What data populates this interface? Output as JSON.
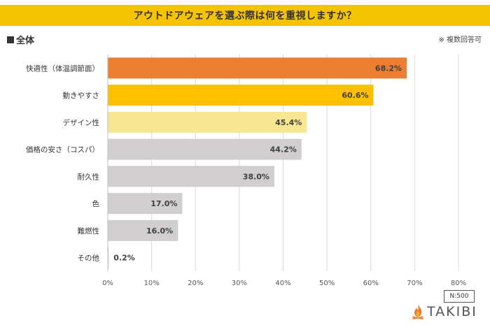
{
  "header": {
    "title": "アウトドアウェアを選ぶ際は何を重視しますか？",
    "section_label": "全体",
    "note": "※ 複数回答可"
  },
  "footer": {
    "sample_size": "N:500",
    "brand": "TAKIBI"
  },
  "colors": {
    "title_bar": "#f5c400",
    "bar_orange": "#ed7d31",
    "bar_yellow": "#ffc000",
    "bar_light_yellow": "#f7e793",
    "bar_gray": "#d0cece"
  },
  "chart_data": {
    "type": "bar",
    "orientation": "horizontal",
    "title": "アウトドアウェアを選ぶ際は何を重視しますか？",
    "categories": [
      "快適性（体温調節面）",
      "動きやすさ",
      "デザイン性",
      "価格の安さ（コスパ）",
      "耐久性",
      "色",
      "難燃性",
      "その他"
    ],
    "values": [
      68.2,
      60.6,
      45.4,
      44.2,
      38.0,
      17.0,
      16.0,
      0.2
    ],
    "value_labels": [
      "68.2%",
      "60.6%",
      "45.4%",
      "44.2%",
      "38.0%",
      "17.0%",
      "16.0%",
      "0.2%"
    ],
    "bar_colors": [
      "#ed7d31",
      "#ffc000",
      "#f7e793",
      "#d0cece",
      "#d0cece",
      "#d0cece",
      "#d0cece",
      "#d0cece"
    ],
    "xlim": [
      0,
      80
    ],
    "x_ticks": [
      0,
      10,
      20,
      30,
      40,
      50,
      60,
      70,
      80
    ],
    "x_tick_labels": [
      "0%",
      "10%",
      "20%",
      "30%",
      "40%",
      "50%",
      "60%",
      "70%",
      "80%"
    ],
    "grid": true,
    "xlabel": "",
    "ylabel": ""
  }
}
